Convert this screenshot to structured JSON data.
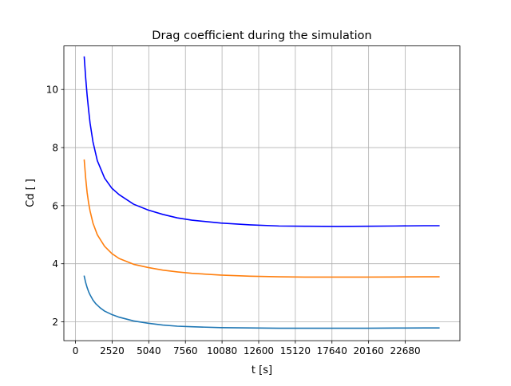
{
  "chart_data": {
    "type": "line",
    "title": "Drag coefficient during the simulation",
    "xlabel": "t [s]",
    "ylabel": "Cd [ ]",
    "xlim": [
      -800,
      26440
    ],
    "ylim": [
      1.35,
      11.5
    ],
    "xticks": [
      0,
      2520,
      5040,
      7560,
      10080,
      12600,
      15120,
      17640,
      20160,
      22680
    ],
    "yticks": [
      2,
      4,
      6,
      8,
      10
    ],
    "grid": true,
    "series": [
      {
        "color": "#1f77b4",
        "points": [
          [
            600,
            3.57
          ],
          [
            700,
            3.35
          ],
          [
            800,
            3.18
          ],
          [
            900,
            3.04
          ],
          [
            1000,
            2.93
          ],
          [
            1200,
            2.75
          ],
          [
            1400,
            2.62
          ],
          [
            1700,
            2.48
          ],
          [
            2000,
            2.37
          ],
          [
            2500,
            2.25
          ],
          [
            3000,
            2.16
          ],
          [
            4000,
            2.03
          ],
          [
            5000,
            1.95
          ],
          [
            6000,
            1.89
          ],
          [
            7000,
            1.85
          ],
          [
            8000,
            1.83
          ],
          [
            10000,
            1.8
          ],
          [
            12000,
            1.79
          ],
          [
            14000,
            1.78
          ],
          [
            16000,
            1.78
          ],
          [
            18000,
            1.78
          ],
          [
            20000,
            1.78
          ],
          [
            22000,
            1.785
          ],
          [
            24000,
            1.79
          ],
          [
            25000,
            1.79
          ]
        ]
      },
      {
        "color": "#ff7f0e",
        "points": [
          [
            600,
            7.57
          ],
          [
            700,
            6.95
          ],
          [
            800,
            6.45
          ],
          [
            900,
            6.1
          ],
          [
            1000,
            5.82
          ],
          [
            1200,
            5.4
          ],
          [
            1500,
            5.0
          ],
          [
            2000,
            4.6
          ],
          [
            2500,
            4.35
          ],
          [
            3000,
            4.18
          ],
          [
            4000,
            3.98
          ],
          [
            5000,
            3.87
          ],
          [
            6000,
            3.78
          ],
          [
            7000,
            3.72
          ],
          [
            8000,
            3.67
          ],
          [
            10000,
            3.61
          ],
          [
            12000,
            3.57
          ],
          [
            14000,
            3.55
          ],
          [
            16000,
            3.54
          ],
          [
            18000,
            3.54
          ],
          [
            20000,
            3.54
          ],
          [
            22000,
            3.545
          ],
          [
            24000,
            3.55
          ],
          [
            25000,
            3.55
          ]
        ]
      },
      {
        "color": "#0000ff",
        "points": [
          [
            600,
            11.12
          ],
          [
            700,
            10.4
          ],
          [
            800,
            9.8
          ],
          [
            900,
            9.3
          ],
          [
            1000,
            8.85
          ],
          [
            1200,
            8.2
          ],
          [
            1500,
            7.55
          ],
          [
            2000,
            6.95
          ],
          [
            2500,
            6.6
          ],
          [
            3000,
            6.38
          ],
          [
            4000,
            6.05
          ],
          [
            5000,
            5.85
          ],
          [
            6000,
            5.7
          ],
          [
            7000,
            5.58
          ],
          [
            8000,
            5.5
          ],
          [
            10000,
            5.4
          ],
          [
            12000,
            5.34
          ],
          [
            14000,
            5.3
          ],
          [
            16000,
            5.29
          ],
          [
            18000,
            5.285
          ],
          [
            20000,
            5.29
          ],
          [
            22000,
            5.3
          ],
          [
            24000,
            5.31
          ],
          [
            25000,
            5.31
          ]
        ]
      }
    ]
  }
}
